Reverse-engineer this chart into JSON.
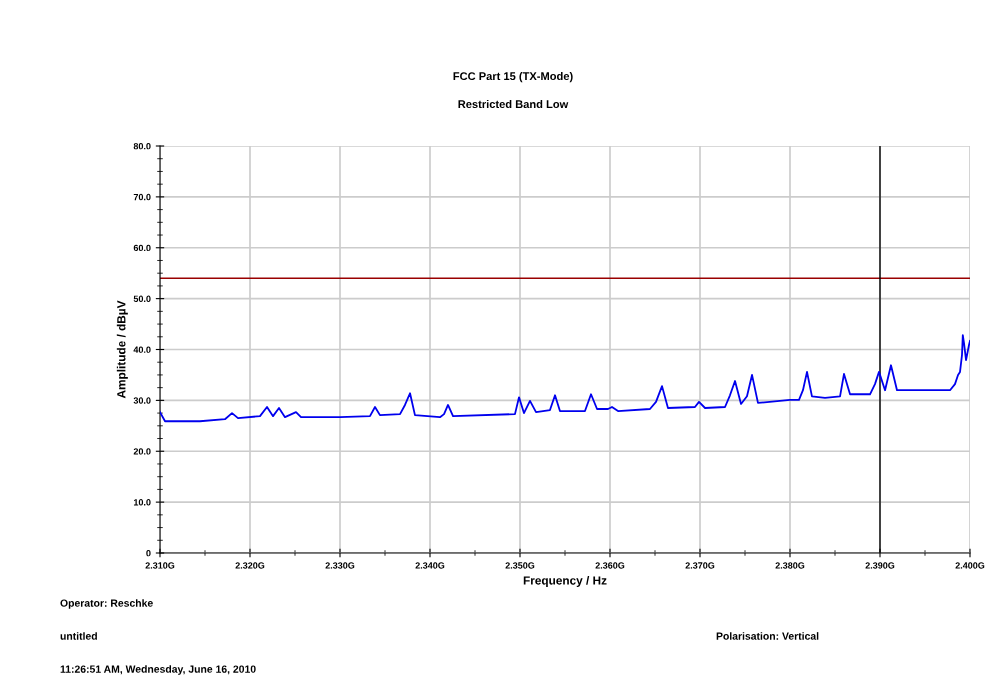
{
  "chart_data": {
    "type": "line",
    "title": "FCC Part 15 (TX-Mode)",
    "subtitle": "Restricted Band Low",
    "xlabel": "Frequency / Hz",
    "ylabel": "Amplitude / dBµV",
    "series": [
      {
        "color": "#0000ee",
        "x": [
          2.31,
          2.31056,
          2.31444,
          2.31722,
          2.318,
          2.31867,
          2.32111,
          2.32189,
          2.32256,
          2.32322,
          2.32389,
          2.32511,
          2.32567,
          2.33,
          2.33333,
          2.33389,
          2.33444,
          2.33667,
          2.33722,
          2.33778,
          2.33833,
          2.34111,
          2.34156,
          2.342,
          2.34256,
          2.34944,
          2.34989,
          2.35044,
          2.35111,
          2.35178,
          2.35333,
          2.35389,
          2.35444,
          2.35722,
          2.35789,
          2.35856,
          2.35978,
          2.36022,
          2.36089,
          2.36444,
          2.36511,
          2.36578,
          2.36644,
          2.36944,
          2.36989,
          2.37056,
          2.37278,
          2.37333,
          2.37389,
          2.37456,
          2.37522,
          2.37578,
          2.37644,
          2.38,
          2.381,
          2.38144,
          2.38189,
          2.38244,
          2.38389,
          2.38556,
          2.386,
          2.38667,
          2.38889,
          2.38944,
          2.38989,
          2.39056,
          2.39122,
          2.39189,
          2.39778,
          2.39833,
          2.39867,
          2.39889,
          2.39911,
          2.3992,
          2.39933,
          2.39956,
          2.39989,
          2.4
        ],
        "values": [
          27.7,
          25.9,
          25.9,
          26.3,
          27.5,
          26.5,
          26.9,
          28.7,
          26.9,
          28.5,
          26.7,
          27.7,
          26.7,
          26.7,
          26.9,
          28.7,
          27.1,
          27.3,
          29.1,
          31.4,
          27.1,
          26.7,
          27.3,
          29.1,
          26.9,
          27.3,
          30.6,
          27.5,
          29.9,
          27.7,
          28.1,
          31.0,
          27.9,
          27.9,
          31.2,
          28.3,
          28.3,
          28.7,
          27.9,
          28.3,
          29.7,
          32.8,
          28.5,
          28.7,
          29.7,
          28.5,
          28.7,
          31.0,
          33.8,
          29.3,
          30.8,
          35.0,
          29.5,
          30.1,
          30.1,
          32.0,
          35.6,
          30.8,
          30.5,
          30.8,
          35.2,
          31.2,
          31.2,
          33.2,
          35.6,
          32.0,
          36.9,
          32.0,
          32.0,
          33.2,
          35.0,
          35.6,
          38.9,
          42.8,
          41.3,
          37.9,
          40.9,
          41.7
        ]
      }
    ],
    "xlim": [
      2.31,
      2.4
    ],
    "xticks": [
      {
        "value": 2.31,
        "label": "2.310G"
      },
      {
        "value": 2.32,
        "label": "2.320G"
      },
      {
        "value": 2.33,
        "label": "2.330G"
      },
      {
        "value": 2.34,
        "label": "2.340G"
      },
      {
        "value": 2.35,
        "label": "2.350G"
      },
      {
        "value": 2.36,
        "label": "2.360G"
      },
      {
        "value": 2.37,
        "label": "2.370G"
      },
      {
        "value": 2.38,
        "label": "2.380G"
      },
      {
        "value": 2.39,
        "label": "2.390G"
      },
      {
        "value": 2.4,
        "label": "2.400G"
      }
    ],
    "ylim": [
      0,
      80
    ],
    "yticks": [
      0,
      {
        "value": 10,
        "label": "10.0"
      },
      {
        "value": 20,
        "label": "20.0"
      },
      {
        "value": 30,
        "label": "30.0"
      },
      {
        "value": 40,
        "label": "40.0"
      },
      {
        "value": 50,
        "label": "50.0"
      },
      {
        "value": 60,
        "label": "60.0"
      },
      {
        "value": 70,
        "label": "70.0"
      },
      {
        "value": 80,
        "label": "80.0"
      }
    ],
    "ref_lines": [
      {
        "axis": "y",
        "value": 54,
        "color": "#990000"
      },
      {
        "axis": "x",
        "value": 2.39,
        "color": "#000000"
      }
    ],
    "grid": true,
    "marker": "none",
    "line_style": "solid",
    "legend": false,
    "annotations": [
      "Operator: Reschke",
      "untitled",
      "11:26:51 AM, Wednesday, June 16, 2010",
      "Polarisation: Vertical"
    ]
  }
}
